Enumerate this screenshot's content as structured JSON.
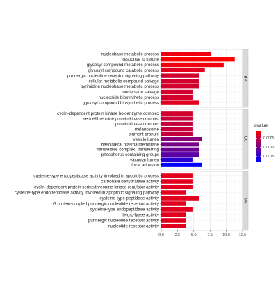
{
  "chart_data": {
    "type": "bar",
    "orientation": "horizontal",
    "title": "",
    "xlabel": "",
    "ylabel": "",
    "xlim": [
      0,
      12.5
    ],
    "x_ticks": [
      0,
      2.5,
      5,
      7.5,
      10,
      12.5
    ],
    "x_tick_labels": [
      "0.0",
      "2.5",
      "5.0",
      "7.5",
      "10.0",
      "12.5"
    ],
    "grid": true,
    "facet_strip_position": "right",
    "legend": {
      "title": "qvalue",
      "placement": "right",
      "ticks": [
        0.0005,
        0.001,
        0.0015
      ],
      "tick_labels": [
        "0.0005",
        "0.0010",
        "0.0015"
      ],
      "range": [
        0.0001,
        0.0018
      ],
      "low_color": "#ff0000",
      "high_color": "#0000ff"
    },
    "panels": [
      {
        "strip": "BP",
        "bars": [
          {
            "label": "nucleobase metabolic process",
            "value": 7.7,
            "qvalue": 0.0002
          },
          {
            "label": "response to ketone",
            "value": 11.3,
            "qvalue": 0.0001
          },
          {
            "label": "glycosyl compound metabolic process",
            "value": 9.6,
            "qvalue": 0.0002
          },
          {
            "label": "glycosyl compound catabolic process",
            "value": 6.7,
            "qvalue": 0.0003
          },
          {
            "label": "purinergic nucleotide receptor signaling pathway",
            "value": 5.8,
            "qvalue": 0.0004
          },
          {
            "label": "cellular metabolic compound salvage",
            "value": 5.8,
            "qvalue": 0.0004
          },
          {
            "label": "pyrimidine nucleobase metabolic process",
            "value": 5.8,
            "qvalue": 0.0004
          },
          {
            "label": "nucleoside salvage",
            "value": 4.8,
            "qvalue": 0.0004
          },
          {
            "label": "nucleoside biosynthetic process",
            "value": 4.8,
            "qvalue": 0.0004
          },
          {
            "label": "glycosyl compound biosynthetic process",
            "value": 5.8,
            "qvalue": 0.0003
          }
        ]
      },
      {
        "strip": "CC",
        "bars": [
          {
            "label": "cyclin-dependent protein kinase holoenzyme complex",
            "value": 4.8,
            "qvalue": 0.0004
          },
          {
            "label": "serine/threonine protein kinase complex",
            "value": 4.8,
            "qvalue": 0.0005
          },
          {
            "label": "protein kinase complex",
            "value": 4.8,
            "qvalue": 0.0005
          },
          {
            "label": "melanosome",
            "value": 4.8,
            "qvalue": 0.0005
          },
          {
            "label": "pigment granule",
            "value": 4.8,
            "qvalue": 0.0005
          },
          {
            "label": "vesicle lumen",
            "value": 6.3,
            "qvalue": 0.0009
          },
          {
            "label": "basolateral plasma membrane",
            "value": 5.8,
            "qvalue": 0.001
          },
          {
            "label": "transferase complex, transferring",
            "value": 5.8,
            "qvalue": 0.0011
          },
          {
            "label": "phosphorus-containing groups",
            "value": 5.8,
            "qvalue": 0.0012
          },
          {
            "label": "vacuolar lumen",
            "value": 4.8,
            "qvalue": 0.0015
          },
          {
            "label": "focal adhesion",
            "value": 6.3,
            "qvalue": 0.0018
          }
        ]
      },
      {
        "strip": "MF",
        "bars": [
          {
            "label": "cysteine-type endopeptidase activity involved in apoptotic process",
            "value": 4.8,
            "qvalue": 0.0003
          },
          {
            "label": "carbonate dehydratase activity",
            "value": 4.8,
            "qvalue": 0.0003
          },
          {
            "label": "cyclin-dependent protein serine/threonine kinase regulator activity",
            "value": 4.8,
            "qvalue": 0.0003
          },
          {
            "label": "cysteine-type endopeptidase activity involved in apoptotic signaling pathway",
            "value": 3.8,
            "qvalue": 0.0003
          },
          {
            "label": "cysteine-type peptidase activity",
            "value": 5.8,
            "qvalue": 0.0003
          },
          {
            "label": "G protein-coupled purinergic nucleotide receptor activity",
            "value": 3.8,
            "qvalue": 0.0003
          },
          {
            "label": "cysteine-type endopeptidase activity",
            "value": 4.8,
            "qvalue": 0.0003
          },
          {
            "label": "hydro-lyase activity",
            "value": 3.8,
            "qvalue": 0.0003
          },
          {
            "label": "purinergic nucleotide receptor activity",
            "value": 3.8,
            "qvalue": 0.0003
          },
          {
            "label": "nucleotide receptor activity",
            "value": 3.8,
            "qvalue": 0.0003
          }
        ]
      }
    ]
  }
}
